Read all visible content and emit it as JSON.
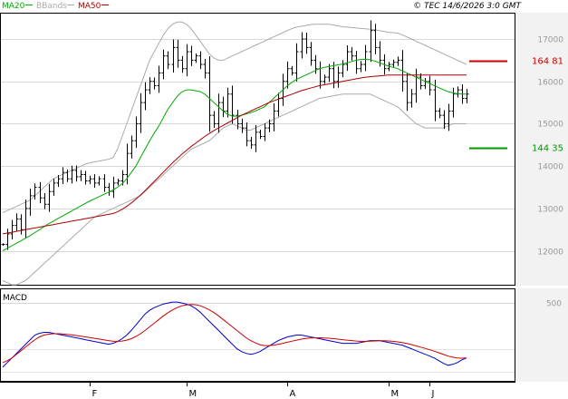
{
  "header": {
    "legend": [
      {
        "label": "MA20",
        "color": "#00aa00"
      },
      {
        "label": "BBands",
        "color": "#aaaaaa"
      },
      {
        "label": "MA50",
        "color": "#aa0000"
      }
    ],
    "copyright": "© TEC 14/6/2026 3:0 GMT"
  },
  "macd_label": "MACD",
  "chart_data": [
    {
      "type": "line",
      "title": "",
      "ylim": [
        11200,
        17600
      ],
      "yticks": [
        12000,
        13000,
        14000,
        15000,
        16000,
        17000
      ],
      "ytick_labels": [
        "12000",
        "13000",
        "14000",
        "15000",
        "16000",
        "17000"
      ],
      "xtick_labels": [
        "F",
        "M",
        "A",
        "M",
        "J"
      ],
      "grid": true,
      "price_markers": [
        {
          "name": "upper",
          "value": 16481,
          "label": "164 81",
          "color": "#cc0000"
        },
        {
          "name": "lower",
          "value": 14435,
          "label": "144 35",
          "color": "#009900"
        }
      ],
      "ohlc_close": [
        12150,
        12400,
        12600,
        12750,
        12500,
        13000,
        13300,
        13500,
        13250,
        13100,
        13400,
        13600,
        13700,
        13850,
        13700,
        13900,
        13750,
        13800,
        13650,
        13700,
        13600,
        13700,
        13500,
        13400,
        13600,
        13650,
        13800,
        14300,
        14600,
        15000,
        15500,
        15800,
        16000,
        15900,
        16200,
        16600,
        16400,
        16800,
        16500,
        16300,
        16700,
        16500,
        16600,
        16400,
        16200,
        15200,
        15000,
        15500,
        15300,
        15700,
        15200,
        15000,
        14900,
        14600,
        14500,
        14800,
        14700,
        14900,
        15000,
        15300,
        15600,
        16000,
        16300,
        16200,
        16700,
        17000,
        16800,
        16500,
        16300,
        16000,
        16100,
        16300,
        16000,
        16200,
        16400,
        16700,
        16600,
        16300,
        16400,
        16700,
        17200,
        16800,
        16500,
        16300,
        16400,
        16450,
        16500,
        16000,
        15500,
        15700,
        16100,
        15900,
        16000,
        15800,
        15300,
        15200,
        15000,
        15300,
        15700,
        15800,
        15600,
        15700
      ],
      "series": [
        {
          "name": "MA20",
          "color": "#00aa00",
          "values": [
            12000,
            12060,
            12120,
            12180,
            12240,
            12300,
            12360,
            12430,
            12500,
            12570,
            12640,
            12700,
            12760,
            12820,
            12880,
            12940,
            13000,
            13060,
            13120,
            13180,
            13230,
            13280,
            13330,
            13380,
            13440,
            13500,
            13580,
            13700,
            13850,
            14000,
            14200,
            14400,
            14600,
            14780,
            14950,
            15150,
            15350,
            15500,
            15650,
            15750,
            15800,
            15800,
            15780,
            15760,
            15700,
            15600,
            15500,
            15400,
            15300,
            15220,
            15180,
            15180,
            15200,
            15230,
            15260,
            15300,
            15350,
            15400,
            15500,
            15600,
            15700,
            15800,
            15900,
            15980,
            16050,
            16100,
            16150,
            16200,
            16250,
            16300,
            16330,
            16350,
            16370,
            16390,
            16410,
            16440,
            16470,
            16500,
            16520,
            16520,
            16510,
            16480,
            16440,
            16400,
            16360,
            16330,
            16300,
            16250,
            16200,
            16150,
            16100,
            16050,
            16000,
            15950,
            15900,
            15850,
            15800,
            15760,
            15730,
            15710,
            15700,
            15700
          ]
        },
        {
          "name": "MA50",
          "color": "#aa0000",
          "values": [
            12400,
            12420,
            12440,
            12460,
            12480,
            12500,
            12520,
            12540,
            12560,
            12580,
            12600,
            12620,
            12640,
            12660,
            12680,
            12700,
            12720,
            12740,
            12760,
            12780,
            12800,
            12820,
            12840,
            12860,
            12880,
            12920,
            12980,
            13050,
            13130,
            13220,
            13320,
            13420,
            13530,
            13640,
            13750,
            13860,
            13970,
            14080,
            14180,
            14280,
            14370,
            14460,
            14540,
            14620,
            14700,
            14770,
            14840,
            14900,
            14960,
            15020,
            15080,
            15140,
            15200,
            15250,
            15300,
            15350,
            15400,
            15450,
            15500,
            15540,
            15580,
            15620,
            15660,
            15700,
            15740,
            15780,
            15810,
            15840,
            15870,
            15900,
            15920,
            15940,
            15960,
            15980,
            16000,
            16020,
            16040,
            16060,
            16080,
            16100,
            16110,
            16120,
            16130,
            16140,
            16150,
            16150,
            16150,
            16150,
            16150,
            16150,
            16150,
            16150,
            16150,
            16150,
            16150,
            16150,
            16150,
            16150,
            16150,
            16150,
            16150,
            16150
          ]
        },
        {
          "name": "BB upper",
          "color": "#aaaaaa",
          "values": [
            12900,
            12950,
            13000,
            13050,
            13100,
            13150,
            13200,
            13300,
            13400,
            13500,
            13600,
            13700,
            13750,
            13800,
            13850,
            13900,
            13950,
            14000,
            14050,
            14080,
            14100,
            14120,
            14140,
            14160,
            14200,
            14400,
            14700,
            15000,
            15300,
            15600,
            15900,
            16200,
            16500,
            16700,
            16900,
            17100,
            17250,
            17350,
            17400,
            17400,
            17350,
            17250,
            17100,
            16950,
            16800,
            16650,
            16550,
            16500,
            16500,
            16550,
            16600,
            16650,
            16700,
            16750,
            16800,
            16850,
            16900,
            16950,
            17000,
            17050,
            17100,
            17150,
            17200,
            17250,
            17280,
            17300,
            17320,
            17340,
            17350,
            17350,
            17350,
            17350,
            17330,
            17310,
            17290,
            17280,
            17270,
            17260,
            17250,
            17240,
            17230,
            17220,
            17200,
            17180,
            17160,
            17150,
            17140,
            17100,
            17050,
            17000,
            16950,
            16900,
            16850,
            16800,
            16750,
            16700,
            16650,
            16600,
            16550,
            16500,
            16450,
            16400
          ]
        },
        {
          "name": "BB lower",
          "color": "#aaaaaa",
          "values": [
            11300,
            11250,
            11200,
            11200,
            11250,
            11300,
            11400,
            11500,
            11600,
            11700,
            11800,
            11900,
            12000,
            12100,
            12200,
            12300,
            12400,
            12500,
            12600,
            12700,
            12800,
            12850,
            12900,
            12950,
            13000,
            13050,
            13100,
            13150,
            13200,
            13250,
            13300,
            13400,
            13500,
            13600,
            13700,
            13800,
            13900,
            14000,
            14100,
            14200,
            14300,
            14400,
            14450,
            14500,
            14550,
            14600,
            14700,
            14800,
            14900,
            14950,
            15000,
            14950,
            14900,
            14850,
            14850,
            14900,
            14950,
            15000,
            15050,
            15100,
            15150,
            15200,
            15250,
            15300,
            15350,
            15400,
            15450,
            15500,
            15550,
            15600,
            15620,
            15640,
            15660,
            15680,
            15700,
            15700,
            15700,
            15700,
            15700,
            15700,
            15700,
            15650,
            15600,
            15550,
            15500,
            15450,
            15400,
            15300,
            15200,
            15100,
            15000,
            14950,
            14900,
            14900,
            14900,
            14900,
            14900,
            14950,
            15000,
            15000,
            15000,
            15000
          ]
        }
      ]
    },
    {
      "type": "line",
      "title": "",
      "ylim": [
        -350,
        650
      ],
      "yticks": [
        500
      ],
      "ytick_labels": [
        "500"
      ],
      "grid": true,
      "series": [
        {
          "name": "MACD",
          "color": "#0000cc",
          "values": [
            -200,
            -150,
            -100,
            -50,
            0,
            50,
            100,
            150,
            170,
            180,
            180,
            170,
            160,
            150,
            140,
            130,
            120,
            110,
            100,
            90,
            80,
            70,
            60,
            50,
            60,
            80,
            110,
            150,
            200,
            260,
            320,
            380,
            420,
            450,
            470,
            490,
            500,
            510,
            510,
            500,
            490,
            470,
            440,
            400,
            350,
            300,
            250,
            200,
            150,
            100,
            50,
            0,
            -30,
            -50,
            -60,
            -50,
            -30,
            0,
            30,
            60,
            90,
            110,
            130,
            140,
            150,
            150,
            140,
            130,
            120,
            110,
            100,
            90,
            80,
            70,
            60,
            60,
            60,
            60,
            70,
            80,
            90,
            90,
            90,
            80,
            70,
            60,
            50,
            40,
            20,
            0,
            -20,
            -40,
            -60,
            -80,
            -100,
            -130,
            -160,
            -180,
            -170,
            -150,
            -120,
            -100
          ]
        },
        {
          "name": "Signal",
          "color": "#cc0000",
          "values": [
            -150,
            -130,
            -100,
            -60,
            -20,
            20,
            60,
            100,
            130,
            150,
            160,
            165,
            165,
            162,
            158,
            152,
            145,
            138,
            130,
            122,
            114,
            106,
            98,
            90,
            84,
            82,
            85,
            95,
            110,
            135,
            165,
            200,
            240,
            280,
            320,
            360,
            395,
            425,
            450,
            470,
            480,
            485,
            482,
            470,
            450,
            425,
            395,
            360,
            320,
            280,
            240,
            200,
            160,
            120,
            90,
            65,
            45,
            35,
            35,
            40,
            50,
            60,
            72,
            84,
            95,
            105,
            112,
            118,
            120,
            120,
            118,
            115,
            110,
            105,
            100,
            95,
            90,
            85,
            82,
            82,
            84,
            86,
            88,
            88,
            86,
            82,
            76,
            68,
            58,
            46,
            32,
            18,
            4,
            -10,
            -26,
            -44,
            -62,
            -80,
            -92,
            -100,
            -102,
            -100
          ]
        }
      ]
    }
  ]
}
